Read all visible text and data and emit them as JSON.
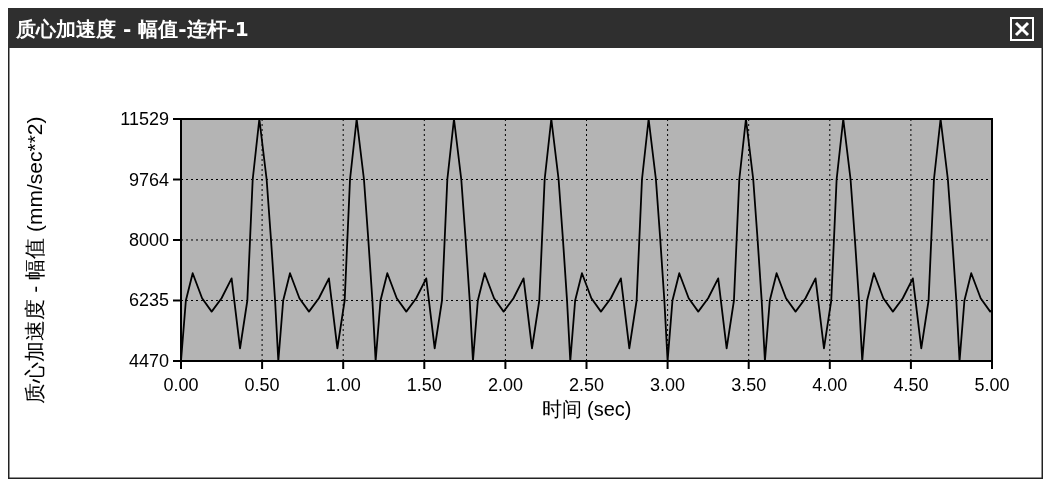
{
  "chart_data": {
    "type": "line",
    "title": "质心加速度 - 幅值-连杆-1",
    "xlabel": "时间 (sec)",
    "ylabel": "质心加速度 - 幅值 (mm/sec**2)",
    "xlim": [
      0,
      5
    ],
    "xticks": [
      {
        "value": 0,
        "label": "0.00"
      },
      {
        "value": 0.5,
        "label": "0.50"
      },
      {
        "value": 1,
        "label": "1.00"
      },
      {
        "value": 1.5,
        "label": "1.50"
      },
      {
        "value": 2,
        "label": "2.00"
      },
      {
        "value": 2.5,
        "label": "2.50"
      },
      {
        "value": 3,
        "label": "3.00"
      },
      {
        "value": 3.5,
        "label": "3.50"
      },
      {
        "value": 4,
        "label": "4.00"
      },
      {
        "value": 4.5,
        "label": "4.50"
      },
      {
        "value": 5,
        "label": "5.00"
      }
    ],
    "ylim": [
      4470,
      11529
    ],
    "yticks": [
      4470,
      6235,
      8000,
      9764,
      11529
    ],
    "grid": true,
    "marker": "none",
    "line_style": "solid",
    "series": [
      {
        "color": "#000000",
        "x": [
          0,
          0.03,
          0.072,
          0.13,
          0.189,
          0.25,
          0.312,
          0.364,
          0.409,
          0.442,
          0.483,
          0.528,
          0.555,
          0.58,
          0.6,
          0.63,
          0.672,
          0.73,
          0.789,
          0.85,
          0.912,
          0.964,
          1.009,
          1.042,
          1.083,
          1.128,
          1.155,
          1.18,
          1.2,
          1.23,
          1.272,
          1.33,
          1.389,
          1.45,
          1.512,
          1.564,
          1.609,
          1.642,
          1.683,
          1.728,
          1.755,
          1.78,
          1.8,
          1.83,
          1.872,
          1.93,
          1.989,
          2.05,
          2.112,
          2.164,
          2.209,
          2.242,
          2.283,
          2.328,
          2.355,
          2.38,
          2.4,
          2.43,
          2.472,
          2.53,
          2.589,
          2.65,
          2.712,
          2.764,
          2.809,
          2.842,
          2.883,
          2.928,
          2.955,
          2.98,
          3,
          3.03,
          3.072,
          3.13,
          3.189,
          3.25,
          3.312,
          3.364,
          3.409,
          3.442,
          3.483,
          3.528,
          3.555,
          3.58,
          3.6,
          3.63,
          3.672,
          3.73,
          3.789,
          3.85,
          3.912,
          3.964,
          4.009,
          4.042,
          4.083,
          4.128,
          4.155,
          4.18,
          4.2,
          4.23,
          4.272,
          4.33,
          4.389,
          4.45,
          4.512,
          4.564,
          4.609,
          4.642,
          4.683,
          4.728,
          4.755,
          4.78,
          4.8,
          4.83,
          4.872,
          4.93,
          4.989,
          5
        ],
        "values": [
          4470,
          6235,
          7030,
          6300,
          5910,
          6300,
          6880,
          4840,
          6235,
          9764,
          11529,
          9764,
          8000,
          6235,
          4470,
          6235,
          7030,
          6300,
          5910,
          6300,
          6880,
          4840,
          6235,
          9764,
          11529,
          9764,
          8000,
          6235,
          4470,
          6235,
          7030,
          6300,
          5910,
          6300,
          6880,
          4840,
          6235,
          9764,
          11529,
          9764,
          8000,
          6235,
          4470,
          6235,
          7030,
          6300,
          5910,
          6300,
          6880,
          4840,
          6235,
          9764,
          11529,
          9764,
          8000,
          6235,
          4470,
          6235,
          7030,
          6300,
          5910,
          6300,
          6880,
          4840,
          6235,
          9764,
          11529,
          9764,
          8000,
          6235,
          4470,
          6235,
          7030,
          6300,
          5910,
          6300,
          6880,
          4840,
          6235,
          9764,
          11529,
          9764,
          8000,
          6235,
          4470,
          6235,
          7030,
          6300,
          5910,
          6300,
          6880,
          4840,
          6235,
          9764,
          11529,
          9764,
          8000,
          6235,
          4470,
          6235,
          7030,
          6300,
          5910,
          6300,
          6880,
          4840,
          6235,
          9764,
          11529,
          9764,
          8000,
          6235,
          4470,
          6235,
          7030,
          6300,
          5910,
          5950
        ]
      }
    ]
  }
}
